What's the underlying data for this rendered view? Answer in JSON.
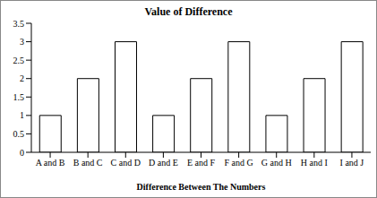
{
  "chart_data": {
    "type": "bar",
    "title": "Value of Difference",
    "x_label": "Difference Between The Numbers",
    "categories": [
      "A and B",
      "B and C",
      "C and D",
      "D and E",
      "E and F",
      "F and G",
      "G and H",
      "H and I",
      "I and J"
    ],
    "values": [
      1,
      2,
      3,
      1,
      2,
      3,
      1,
      2,
      3
    ],
    "color": "#ffffff",
    "ylim": [
      0,
      3.5
    ],
    "yticks": [
      0,
      0.5,
      1,
      1.5,
      2,
      2.5,
      3,
      3.5
    ],
    "grid": false
  }
}
